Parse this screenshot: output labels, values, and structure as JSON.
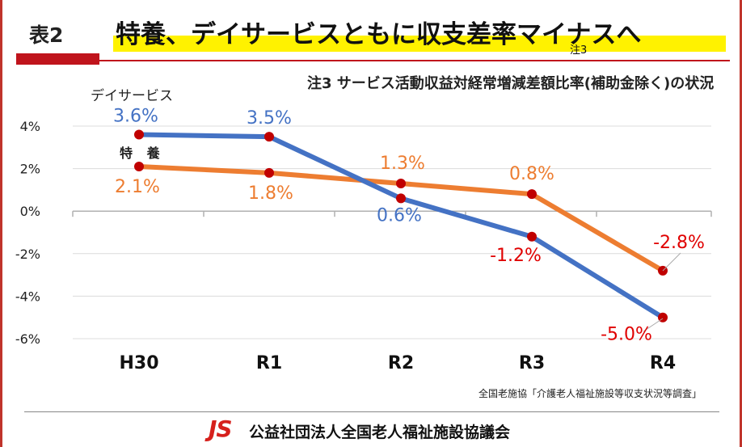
{
  "header": {
    "table_label": "表2",
    "headline": "特養、デイサービスともに収支差率マイナスへ",
    "headline_note": "注3"
  },
  "chart_note": "注3 サービス活動収益対経常増減差額比率(補助金除く)の状況",
  "chart_data": {
    "type": "line",
    "categories": [
      "H30",
      "R1",
      "R2",
      "R3",
      "R4"
    ],
    "ylim": [
      -6,
      4
    ],
    "yticks": [
      4,
      2,
      0,
      -2,
      -4,
      -6
    ],
    "ytick_labels": [
      "4%",
      "2%",
      "0%",
      "-2%",
      "-4%",
      "-6%"
    ],
    "series": [
      {
        "name": "デイサービス",
        "color": "#4472c4",
        "values": [
          3.6,
          3.5,
          0.6,
          -1.2,
          -5.0
        ],
        "labels": [
          "3.6%",
          "3.5%",
          "0.6%",
          "-1.2%",
          "-5.0%"
        ]
      },
      {
        "name": "特 養",
        "color": "#ed7d31",
        "values": [
          2.1,
          1.8,
          1.3,
          0.8,
          -2.8
        ],
        "labels": [
          "2.1%",
          "1.8%",
          "1.3%",
          "0.8%",
          "-2.8%"
        ]
      }
    ],
    "marker_color": "#c00000",
    "negative_label_color": "#e00000"
  },
  "source": "全国老施協「介護老人福祉施設等収支状況等調査」",
  "footer": {
    "logo": "JS",
    "org_name": "公益社団法人全国老人福祉施設協議会"
  }
}
